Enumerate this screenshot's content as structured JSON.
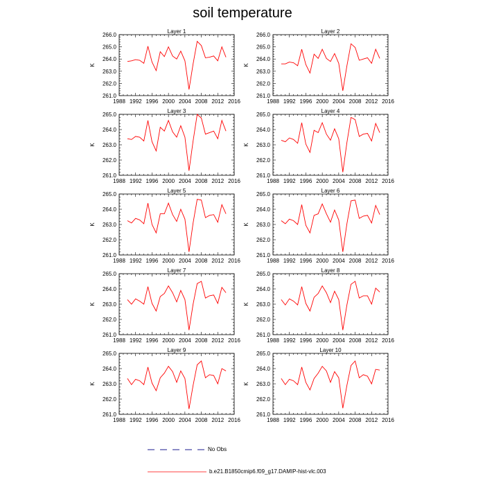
{
  "page": {
    "title": "soil temperature"
  },
  "legend": {
    "obs_label": "No Obs",
    "model_label": "b.e21.B1850cmip6.f09_g17.DAMIP-hist-vlc.003",
    "obs_color": "#1a1a8c",
    "model_color": "#ff0000"
  },
  "chart_data": [
    {
      "type": "line",
      "title": "Layer 1",
      "xlabel": "",
      "ylabel": "K",
      "xlim": [
        1988,
        2016
      ],
      "ylim": [
        261,
        266
      ],
      "xticks": [
        1988,
        1992,
        1996,
        2000,
        2004,
        2008,
        2012,
        2016
      ],
      "yticks": [
        261.0,
        262.0,
        263.0,
        264.0,
        265.0,
        266.0
      ],
      "x": [
        1990,
        1991,
        1992,
        1993,
        1994,
        1995,
        1996,
        1997,
        1998,
        1999,
        2000,
        2001,
        2002,
        2003,
        2004,
        2005,
        2006,
        2007,
        2008,
        2009,
        2010,
        2011,
        2012,
        2013,
        2014
      ],
      "series": [
        {
          "name": "b.e21.B1850cmip6.f09_g17.DAMIP-hist-vlc.003",
          "values": [
            263.8,
            263.85,
            263.95,
            263.9,
            263.65,
            265.05,
            263.75,
            263.05,
            264.6,
            264.2,
            265.0,
            264.25,
            264.0,
            264.65,
            263.85,
            261.5,
            263.6,
            265.45,
            265.1,
            264.1,
            264.15,
            264.25,
            263.85,
            265.0,
            264.15
          ]
        }
      ]
    },
    {
      "type": "line",
      "title": "Layer 2",
      "xlabel": "",
      "ylabel": "K",
      "xlim": [
        1988,
        2016
      ],
      "ylim": [
        261,
        266
      ],
      "xticks": [
        1988,
        1992,
        1996,
        2000,
        2004,
        2008,
        2012,
        2016
      ],
      "yticks": [
        261.0,
        262.0,
        263.0,
        264.0,
        265.0,
        266.0
      ],
      "x": [
        1990,
        1991,
        1992,
        1993,
        1994,
        1995,
        1996,
        1997,
        1998,
        1999,
        2000,
        2001,
        2002,
        2003,
        2004,
        2005,
        2006,
        2007,
        2008,
        2009,
        2010,
        2011,
        2012,
        2013,
        2014
      ],
      "series": [
        {
          "name": "b.e21.B1850cmip6.f09_g17.DAMIP-hist-vlc.003",
          "values": [
            263.6,
            263.6,
            263.75,
            263.7,
            263.45,
            264.8,
            263.55,
            262.85,
            264.4,
            264.05,
            264.8,
            264.05,
            263.8,
            264.45,
            263.65,
            261.4,
            263.45,
            265.25,
            264.95,
            263.9,
            264.0,
            264.1,
            263.65,
            264.8,
            264.05
          ]
        }
      ]
    },
    {
      "type": "line",
      "title": "Layer 3",
      "xlabel": "",
      "ylabel": "K",
      "xlim": [
        1988,
        2016
      ],
      "ylim": [
        261,
        265
      ],
      "xticks": [
        1988,
        1992,
        1996,
        2000,
        2004,
        2008,
        2012,
        2016
      ],
      "yticks": [
        261.0,
        262.0,
        263.0,
        264.0,
        265.0
      ],
      "x": [
        1990,
        1991,
        1992,
        1993,
        1994,
        1995,
        1996,
        1997,
        1998,
        1999,
        2000,
        2001,
        2002,
        2003,
        2004,
        2005,
        2006,
        2007,
        2008,
        2009,
        2010,
        2011,
        2012,
        2013,
        2014
      ],
      "series": [
        {
          "name": "b.e21.B1850cmip6.f09_g17.DAMIP-hist-vlc.003",
          "values": [
            263.4,
            263.35,
            263.55,
            263.5,
            263.25,
            264.6,
            263.2,
            262.6,
            264.15,
            263.9,
            264.6,
            263.85,
            263.5,
            264.25,
            263.5,
            261.3,
            263.25,
            265.0,
            264.75,
            263.7,
            263.8,
            263.9,
            263.4,
            264.6,
            263.9
          ]
        }
      ]
    },
    {
      "type": "line",
      "title": "Layer 4",
      "xlabel": "",
      "ylabel": "K",
      "xlim": [
        1988,
        2016
      ],
      "ylim": [
        261,
        265
      ],
      "xticks": [
        1988,
        1992,
        1996,
        2000,
        2004,
        2008,
        2012,
        2016
      ],
      "yticks": [
        261.0,
        262.0,
        263.0,
        264.0,
        265.0
      ],
      "x": [
        1990,
        1991,
        1992,
        1993,
        1994,
        1995,
        1996,
        1997,
        1998,
        1999,
        2000,
        2001,
        2002,
        2003,
        2004,
        2005,
        2006,
        2007,
        2008,
        2009,
        2010,
        2011,
        2012,
        2013,
        2014
      ],
      "series": [
        {
          "name": "b.e21.B1850cmip6.f09_g17.DAMIP-hist-vlc.003",
          "values": [
            263.3,
            263.2,
            263.45,
            263.35,
            263.1,
            264.45,
            263.05,
            262.5,
            263.95,
            263.8,
            264.45,
            263.7,
            263.3,
            264.05,
            263.4,
            261.2,
            263.15,
            264.8,
            264.65,
            263.55,
            263.7,
            263.75,
            263.25,
            264.4,
            263.8
          ]
        }
      ]
    },
    {
      "type": "line",
      "title": "Layer 5",
      "xlabel": "",
      "ylabel": "K",
      "xlim": [
        1988,
        2016
      ],
      "ylim": [
        261,
        265
      ],
      "xticks": [
        1988,
        1992,
        1996,
        2000,
        2004,
        2008,
        2012,
        2016
      ],
      "yticks": [
        261.0,
        262.0,
        263.0,
        264.0,
        265.0
      ],
      "x": [
        1990,
        1991,
        1992,
        1993,
        1994,
        1995,
        1996,
        1997,
        1998,
        1999,
        2000,
        2001,
        2002,
        2003,
        2004,
        2005,
        2006,
        2007,
        2008,
        2009,
        2010,
        2011,
        2012,
        2013,
        2014
      ],
      "series": [
        {
          "name": "b.e21.B1850cmip6.f09_g17.DAMIP-hist-vlc.003",
          "values": [
            263.25,
            263.1,
            263.4,
            263.3,
            263.05,
            264.4,
            263.0,
            262.45,
            263.7,
            263.7,
            264.4,
            263.65,
            263.2,
            264.0,
            263.35,
            261.2,
            263.1,
            264.65,
            264.6,
            263.45,
            263.6,
            263.65,
            263.15,
            264.3,
            263.7
          ]
        }
      ]
    },
    {
      "type": "line",
      "title": "Layer 6",
      "xlabel": "",
      "ylabel": "K",
      "xlim": [
        1988,
        2016
      ],
      "ylim": [
        261,
        265
      ],
      "xticks": [
        1988,
        1992,
        1996,
        2000,
        2004,
        2008,
        2012,
        2016
      ],
      "yticks": [
        261.0,
        262.0,
        263.0,
        264.0,
        265.0
      ],
      "x": [
        1990,
        1991,
        1992,
        1993,
        1994,
        1995,
        1996,
        1997,
        1998,
        1999,
        2000,
        2001,
        2002,
        2003,
        2004,
        2005,
        2006,
        2007,
        2008,
        2009,
        2010,
        2011,
        2012,
        2013,
        2014
      ],
      "series": [
        {
          "name": "b.e21.B1850cmip6.f09_g17.DAMIP-hist-vlc.003",
          "values": [
            263.25,
            263.05,
            263.35,
            263.25,
            263.0,
            264.3,
            262.95,
            262.45,
            263.6,
            263.7,
            264.35,
            263.7,
            263.15,
            263.95,
            263.3,
            261.2,
            263.05,
            264.55,
            264.6,
            263.4,
            263.55,
            263.6,
            263.1,
            264.25,
            263.65
          ]
        }
      ]
    },
    {
      "type": "line",
      "title": "Layer 7",
      "xlabel": "",
      "ylabel": "K",
      "xlim": [
        1988,
        2016
      ],
      "ylim": [
        261,
        265
      ],
      "xticks": [
        1988,
        1992,
        1996,
        2000,
        2004,
        2008,
        2012,
        2016
      ],
      "yticks": [
        261.0,
        262.0,
        263.0,
        264.0,
        265.0
      ],
      "x": [
        1990,
        1991,
        1992,
        1993,
        1994,
        1995,
        1996,
        1997,
        1998,
        1999,
        2000,
        2001,
        2002,
        2003,
        2004,
        2005,
        2006,
        2007,
        2008,
        2009,
        2010,
        2011,
        2012,
        2013,
        2014
      ],
      "series": [
        {
          "name": "b.e21.B1850cmip6.f09_g17.DAMIP-hist-vlc.003",
          "values": [
            263.3,
            263.0,
            263.35,
            263.2,
            263.0,
            264.15,
            263.05,
            262.55,
            263.5,
            263.7,
            264.2,
            263.75,
            263.15,
            263.9,
            263.3,
            261.3,
            263.0,
            264.35,
            264.5,
            263.4,
            263.55,
            263.6,
            263.05,
            264.1,
            263.75
          ]
        }
      ]
    },
    {
      "type": "line",
      "title": "Layer 8",
      "xlabel": "",
      "ylabel": "K",
      "xlim": [
        1988,
        2016
      ],
      "ylim": [
        261,
        265
      ],
      "xticks": [
        1988,
        1992,
        1996,
        2000,
        2004,
        2008,
        2012,
        2016
      ],
      "yticks": [
        261.0,
        262.0,
        263.0,
        264.0,
        265.0
      ],
      "x": [
        1990,
        1991,
        1992,
        1993,
        1994,
        1995,
        1996,
        1997,
        1998,
        1999,
        2000,
        2001,
        2002,
        2003,
        2004,
        2005,
        2006,
        2007,
        2008,
        2009,
        2010,
        2011,
        2012,
        2013,
        2014
      ],
      "series": [
        {
          "name": "b.e21.B1850cmip6.f09_g17.DAMIP-hist-vlc.003",
          "values": [
            263.3,
            262.95,
            263.35,
            263.2,
            262.95,
            264.15,
            263.05,
            262.55,
            263.45,
            263.7,
            264.2,
            263.75,
            263.1,
            263.85,
            263.3,
            261.3,
            262.95,
            264.3,
            264.5,
            263.4,
            263.55,
            263.55,
            263.0,
            264.05,
            263.8
          ]
        }
      ]
    },
    {
      "type": "line",
      "title": "Layer 9",
      "xlabel": "",
      "ylabel": "K",
      "xlim": [
        1988,
        2016
      ],
      "ylim": [
        261,
        265
      ],
      "xticks": [
        1988,
        1992,
        1996,
        2000,
        2004,
        2008,
        2012,
        2016
      ],
      "yticks": [
        261.0,
        262.0,
        263.0,
        264.0,
        265.0
      ],
      "x": [
        1990,
        1991,
        1992,
        1993,
        1994,
        1995,
        1996,
        1997,
        1998,
        1999,
        2000,
        2001,
        2002,
        2003,
        2004,
        2005,
        2006,
        2007,
        2008,
        2009,
        2010,
        2011,
        2012,
        2013,
        2014
      ],
      "series": [
        {
          "name": "b.e21.B1850cmip6.f09_g17.DAMIP-hist-vlc.003",
          "values": [
            263.35,
            262.95,
            263.3,
            263.2,
            262.95,
            264.1,
            263.05,
            262.55,
            263.4,
            263.7,
            264.15,
            263.8,
            263.1,
            263.85,
            263.35,
            261.35,
            262.9,
            264.25,
            264.5,
            263.4,
            263.6,
            263.55,
            263.0,
            264.0,
            263.85
          ]
        }
      ]
    },
    {
      "type": "line",
      "title": "Layer 10",
      "xlabel": "",
      "ylabel": "K",
      "xlim": [
        1988,
        2016
      ],
      "ylim": [
        261,
        265
      ],
      "xticks": [
        1988,
        1992,
        1996,
        2000,
        2004,
        2008,
        2012,
        2016
      ],
      "yticks": [
        261.0,
        262.0,
        263.0,
        264.0,
        265.0
      ],
      "x": [
        1990,
        1991,
        1992,
        1993,
        1994,
        1995,
        1996,
        1997,
        1998,
        1999,
        2000,
        2001,
        2002,
        2003,
        2004,
        2005,
        2006,
        2007,
        2008,
        2009,
        2010,
        2011,
        2012,
        2013,
        2014
      ],
      "series": [
        {
          "name": "b.e21.B1850cmip6.f09_g17.DAMIP-hist-vlc.003",
          "values": [
            263.35,
            262.95,
            263.3,
            263.2,
            262.95,
            264.1,
            263.1,
            262.6,
            263.35,
            263.7,
            264.15,
            263.85,
            263.1,
            263.8,
            263.4,
            261.4,
            262.9,
            264.2,
            264.5,
            263.4,
            263.6,
            263.5,
            263.0,
            263.95,
            263.9
          ]
        }
      ]
    }
  ]
}
